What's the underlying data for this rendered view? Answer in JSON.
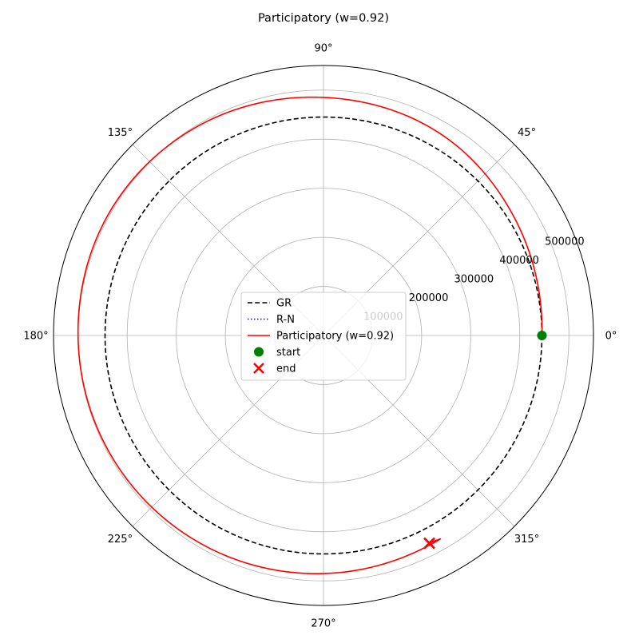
{
  "chart_data": {
    "type": "polar-line",
    "title": "Participatory (w=0.92)",
    "angular_ticks": [
      "0°",
      "45°",
      "90°",
      "135°",
      "180°",
      "225°",
      "270°",
      "315°"
    ],
    "angular_tick_values_deg": [
      0,
      45,
      90,
      135,
      180,
      225,
      270,
      315
    ],
    "radial_ticks": [
      "100000",
      "200000",
      "300000",
      "400000",
      "500000"
    ],
    "radial_tick_values": [
      100000,
      200000,
      300000,
      400000,
      500000
    ],
    "rlim": [
      0,
      550000
    ],
    "grid": true,
    "legend_placement": "center",
    "series": [
      {
        "name": "GR",
        "style": "dashed",
        "color": "#000000",
        "radius": 445000,
        "theta_range_deg": [
          0,
          360
        ]
      },
      {
        "name": "R-N",
        "style": "dotted",
        "color": "#0000ff",
        "radius": null
      },
      {
        "name": "Participatory (w=0.92)",
        "style": "solid",
        "color": "#ff0000",
        "theta_deg": [
          0,
          30,
          60,
          90,
          120,
          150,
          180,
          210,
          240,
          270,
          300
        ],
        "r": [
          445000,
          456000,
          475000,
          485000,
          497000,
          503000,
          500000,
          497000,
          492000,
          485000,
          478000
        ]
      }
    ],
    "markers": [
      {
        "name": "start",
        "marker": "circle",
        "color": "#008000",
        "theta_deg": 0,
        "r": 445000
      },
      {
        "name": "end",
        "marker": "x",
        "color": "#ff0000",
        "theta_deg": 297,
        "r": 475000
      }
    ]
  }
}
